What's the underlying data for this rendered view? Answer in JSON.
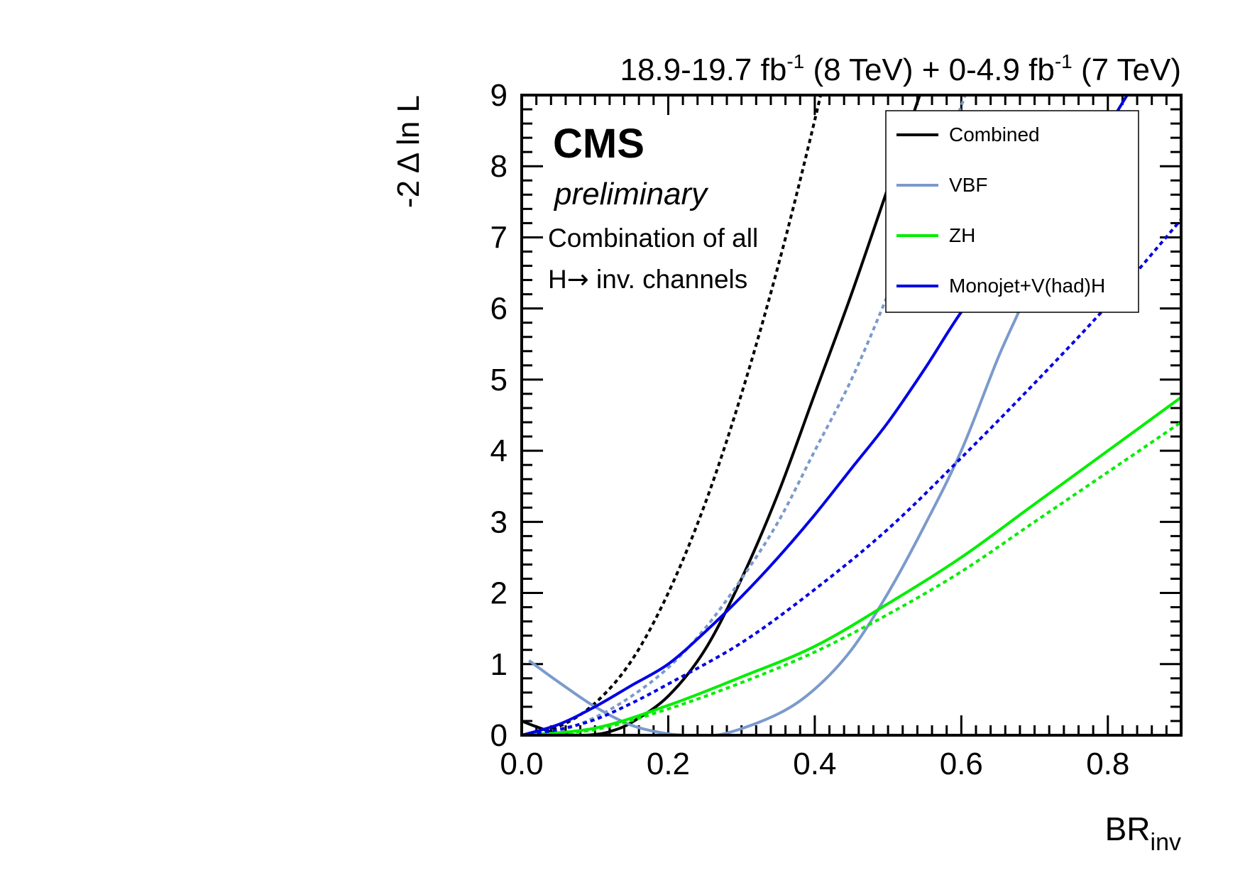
{
  "chart_data": {
    "type": "line",
    "top_label": {
      "lumi8": "18.9-19.7 fb",
      "exp8": "-1",
      "tev8": " (8 TeV) + 0-4.9 fb",
      "exp7": "-1",
      "tev7": " (7 TeV)"
    },
    "experiment": "CMS",
    "status": "preliminary",
    "annotation_line1": "Combination of all",
    "annotation_line2_prefix": "H",
    "annotation_line2_arrow": "→",
    "annotation_line2_suffix": " inv. channels",
    "ylabel": "-2 Δ ln L",
    "xlabel_main": "BR",
    "xlabel_sub": "inv",
    "xlim": [
      0.0,
      0.9
    ],
    "ylim": [
      0,
      9
    ],
    "x_ticks": [
      "0.0",
      "0.2",
      "0.4",
      "0.6",
      "0.8"
    ],
    "x_tick_values": [
      0.0,
      0.2,
      0.4,
      0.6,
      0.8
    ],
    "y_ticks": [
      "0",
      "1",
      "2",
      "3",
      "4",
      "5",
      "6",
      "7",
      "8",
      "9"
    ],
    "y_tick_values": [
      0,
      1,
      2,
      3,
      4,
      5,
      6,
      7,
      8,
      9
    ],
    "legend_position": "top-right",
    "legend": [
      {
        "label": "Combined",
        "color": "#000000"
      },
      {
        "label": "VBF",
        "color": "#7b9acc"
      },
      {
        "label": "ZH",
        "color": "#00ee00"
      },
      {
        "label": "Monojet+V(had)H",
        "color": "#0000e6"
      }
    ],
    "series": [
      {
        "name": "Combined",
        "style": "solid",
        "color": "#000000",
        "x": [
          0.0,
          0.02,
          0.05,
          0.08,
          0.1,
          0.12,
          0.15,
          0.2,
          0.25,
          0.3,
          0.35,
          0.4,
          0.45,
          0.5,
          0.55
        ],
        "y": [
          0.2,
          0.12,
          0.02,
          0.0,
          0.01,
          0.05,
          0.18,
          0.55,
          1.2,
          2.2,
          3.4,
          4.8,
          6.2,
          7.7,
          9.2
        ]
      },
      {
        "name": "Combined",
        "style": "dashed",
        "color": "#000000",
        "x": [
          0.0,
          0.05,
          0.1,
          0.15,
          0.2,
          0.25,
          0.3,
          0.35,
          0.4,
          0.45
        ],
        "y": [
          0.0,
          0.12,
          0.45,
          1.05,
          2.0,
          3.25,
          4.8,
          6.6,
          8.65,
          10.9
        ]
      },
      {
        "name": "VBF",
        "style": "solid",
        "color": "#7b9acc",
        "x": [
          0.01,
          0.05,
          0.1,
          0.15,
          0.2,
          0.24,
          0.28,
          0.35,
          0.4,
          0.45,
          0.5,
          0.55,
          0.6,
          0.65,
          0.7,
          0.75
        ],
        "y": [
          1.05,
          0.75,
          0.4,
          0.14,
          0.02,
          0.0,
          0.03,
          0.3,
          0.65,
          1.2,
          2.0,
          2.95,
          4.0,
          5.3,
          6.5,
          8.2
        ]
      },
      {
        "name": "VBF",
        "style": "dashed",
        "color": "#7b9acc",
        "x": [
          0.0,
          0.05,
          0.1,
          0.15,
          0.2,
          0.25,
          0.3,
          0.35,
          0.4,
          0.45,
          0.5,
          0.55,
          0.6,
          0.62
        ],
        "y": [
          0.0,
          0.06,
          0.25,
          0.55,
          0.95,
          1.5,
          2.2,
          3.0,
          4.0,
          5.0,
          6.2,
          7.5,
          8.85,
          9.4
        ]
      },
      {
        "name": "ZH",
        "style": "solid",
        "color": "#00ee00",
        "x": [
          0.0,
          0.1,
          0.2,
          0.3,
          0.4,
          0.5,
          0.6,
          0.7,
          0.8,
          0.9
        ],
        "y": [
          0.0,
          0.1,
          0.42,
          0.82,
          1.25,
          1.85,
          2.5,
          3.25,
          4.0,
          4.75
        ]
      },
      {
        "name": "ZH",
        "style": "dashed",
        "color": "#00ee00",
        "x": [
          0.0,
          0.1,
          0.2,
          0.3,
          0.4,
          0.5,
          0.6,
          0.7,
          0.8,
          0.9
        ],
        "y": [
          0.0,
          0.08,
          0.37,
          0.74,
          1.17,
          1.7,
          2.3,
          3.0,
          3.7,
          4.4
        ]
      },
      {
        "name": "Monojet+V(had)H",
        "style": "solid",
        "color": "#0000e6",
        "x": [
          0.0,
          0.05,
          0.1,
          0.15,
          0.2,
          0.25,
          0.3,
          0.35,
          0.4,
          0.45,
          0.5,
          0.55,
          0.6,
          0.65,
          0.7,
          0.75,
          0.8,
          0.85
        ],
        "y": [
          0.0,
          0.15,
          0.4,
          0.7,
          1.0,
          1.45,
          1.95,
          2.5,
          3.1,
          3.75,
          4.4,
          5.15,
          5.95,
          6.6,
          7.1,
          7.65,
          8.55,
          9.4
        ]
      },
      {
        "name": "Monojet+V(had)H",
        "style": "dashed",
        "color": "#0000e6",
        "x": [
          0.0,
          0.05,
          0.1,
          0.15,
          0.2,
          0.3,
          0.4,
          0.5,
          0.6,
          0.7,
          0.8,
          0.9
        ],
        "y": [
          0.0,
          0.08,
          0.22,
          0.45,
          0.72,
          1.3,
          2.05,
          2.9,
          3.9,
          4.95,
          6.05,
          7.25
        ]
      }
    ]
  }
}
